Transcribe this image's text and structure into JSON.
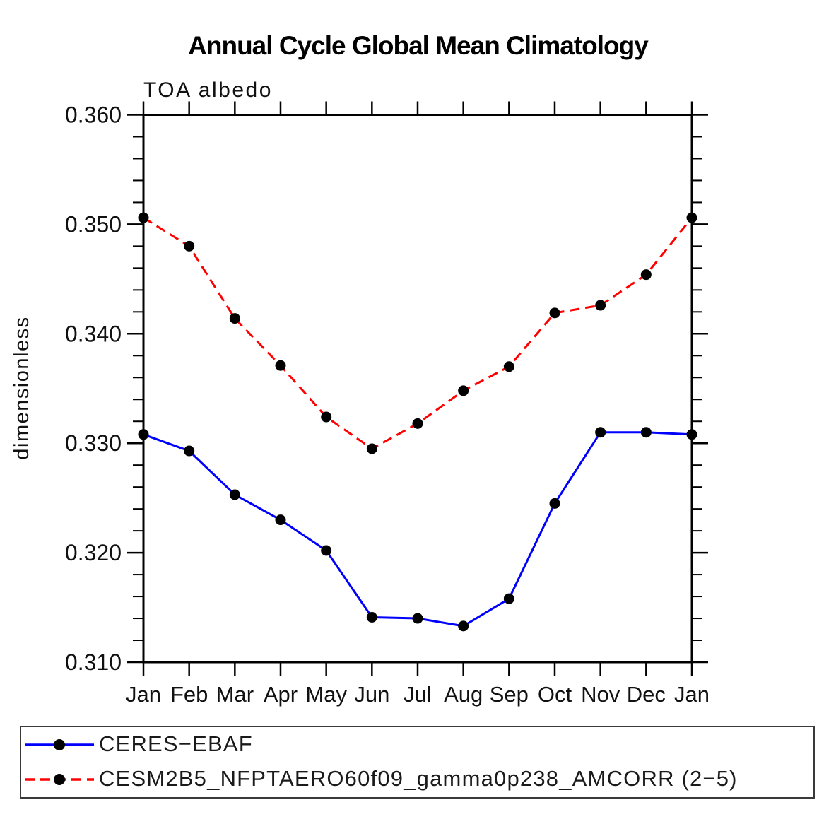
{
  "title": "Annual Cycle Global Mean Climatology",
  "chart_data": {
    "type": "line",
    "title": "Annual Cycle Global Mean Climatology",
    "subtitle": "TOA albedo",
    "ylabel": "dimensionless",
    "x": [
      "Jan",
      "Feb",
      "Mar",
      "Apr",
      "May",
      "Jun",
      "Jul",
      "Aug",
      "Sep",
      "Oct",
      "Nov",
      "Dec",
      "Jan"
    ],
    "ylim": [
      0.31,
      0.36
    ],
    "ytick_interval": 0.01,
    "yminor_interval": 0.002,
    "ytick_labels": [
      "0.310",
      "0.320",
      "0.330",
      "0.340",
      "0.350",
      "0.360"
    ],
    "grid": false,
    "legend_position": "bottom-box",
    "series": [
      {
        "name": "CERES−EBAF",
        "color": "#0000ff",
        "line_style": "solid",
        "marker": "filled-circle",
        "marker_color": "#000000",
        "values": [
          0.3308,
          0.3293,
          0.3253,
          0.323,
          0.3202,
          0.3141,
          0.314,
          0.3133,
          0.3158,
          0.3245,
          0.331,
          0.331,
          0.3308
        ]
      },
      {
        "name": "CESM2B5_NFPTAERO60f09_gamma0p238_AMCORR (2−5)",
        "color": "#ff0000",
        "line_style": "dashed",
        "marker": "filled-circle",
        "marker_color": "#000000",
        "values": [
          0.3506,
          0.348,
          0.3414,
          0.3371,
          0.3324,
          0.3295,
          0.3318,
          0.3348,
          0.337,
          0.3419,
          0.3426,
          0.3454,
          0.3506
        ]
      }
    ]
  }
}
